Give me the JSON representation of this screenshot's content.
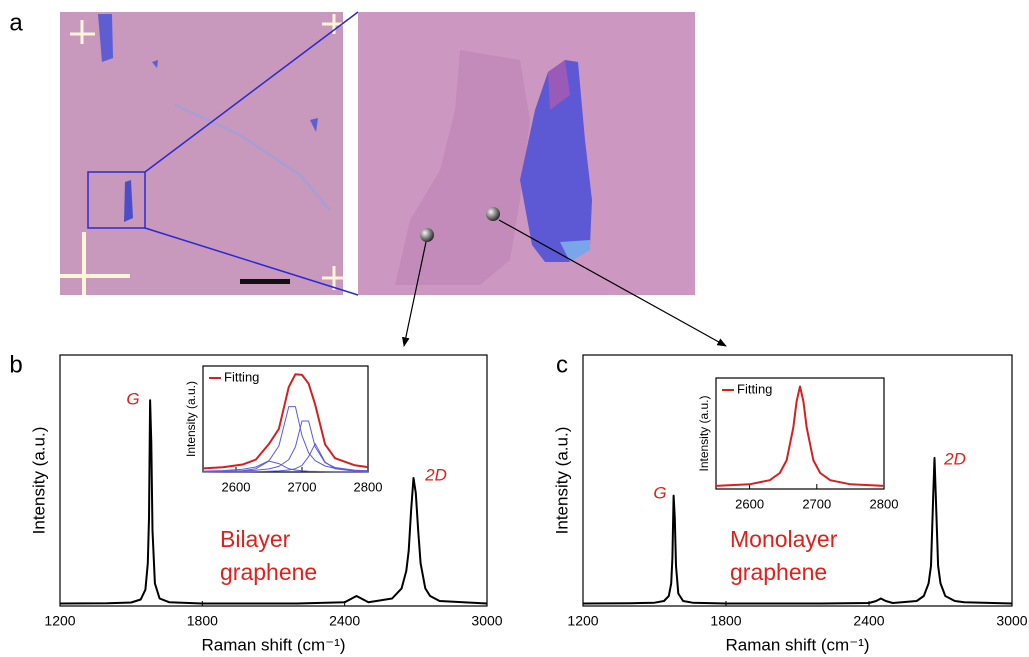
{
  "panel_labels": [
    "a",
    "b",
    "c"
  ],
  "chart_data": [
    {
      "type": "line",
      "xlabel": "Raman shift (cm⁻¹)",
      "ylabel": "Intensity (a.u.)",
      "xlim": [
        1200,
        3000
      ],
      "xticks": [
        1200,
        1800,
        2400,
        3000
      ],
      "ylim": [
        0,
        1
      ],
      "x": [
        1200,
        1400,
        1500,
        1540,
        1560,
        1570,
        1575,
        1580,
        1585,
        1590,
        1600,
        1620,
        1660,
        1800,
        2000,
        2200,
        2400,
        2430,
        2450,
        2470,
        2500,
        2600,
        2640,
        2660,
        2670,
        2680,
        2690,
        2700,
        2710,
        2720,
        2740,
        2760,
        2800,
        3000
      ],
      "series": [
        {
          "color": "#000000",
          "values": [
            0.01,
            0.011,
            0.014,
            0.026,
            0.065,
            0.17,
            0.35,
            0.82,
            0.65,
            0.3,
            0.09,
            0.03,
            0.015,
            0.01,
            0.01,
            0.01,
            0.015,
            0.03,
            0.04,
            0.03,
            0.015,
            0.03,
            0.07,
            0.14,
            0.22,
            0.38,
            0.51,
            0.45,
            0.3,
            0.17,
            0.07,
            0.04,
            0.02,
            0.01
          ]
        }
      ],
      "annotations": [
        "G",
        "2D",
        "Bilayer",
        "graphene"
      ]
    },
    {
      "type": "line",
      "ylabel": "Intensity (a.u.)",
      "xlim": [
        2550,
        2800
      ],
      "xticks": [
        2600,
        2700,
        2800
      ],
      "ylim": [
        0,
        1.05
      ],
      "x": [
        2550,
        2580,
        2610,
        2630,
        2650,
        2665,
        2680,
        2690,
        2700,
        2710,
        2720,
        2735,
        2750,
        2780,
        2800
      ],
      "series": [
        {
          "color": "#5a5ae6",
          "values": [
            0.002,
            0.005,
            0.012,
            0.032,
            0.108,
            0.083,
            0.032,
            0.019,
            0.012,
            0.008,
            0.006,
            0.004,
            0.003,
            0.002,
            0.001
          ]
        },
        {
          "color": "#5a5ae6",
          "values": [
            0.009,
            0.014,
            0.028,
            0.05,
            0.112,
            0.259,
            0.648,
            0.648,
            0.36,
            0.19,
            0.112,
            0.059,
            0.036,
            0.018,
            0.012
          ]
        },
        {
          "color": "#5a5ae6",
          "values": [
            0.004,
            0.006,
            0.011,
            0.017,
            0.031,
            0.055,
            0.123,
            0.249,
            0.505,
            0.505,
            0.249,
            0.092,
            0.045,
            0.017,
            0.011
          ]
        },
        {
          "color": "#5a5ae6",
          "values": [
            0.001,
            0.002,
            0.003,
            0.004,
            0.007,
            0.011,
            0.02,
            0.033,
            0.065,
            0.153,
            0.28,
            0.098,
            0.033,
            0.009,
            0.005
          ]
        },
        {
          "name": "Fitting",
          "color": "#d42020",
          "values": [
            0.036,
            0.047,
            0.074,
            0.123,
            0.278,
            0.428,
            0.843,
            0.969,
            0.962,
            0.876,
            0.667,
            0.273,
            0.137,
            0.066,
            0.049
          ]
        }
      ]
    },
    {
      "type": "line",
      "xlabel": "Raman shift (cm⁻¹)",
      "ylabel": "Intensity (a.u.)",
      "xlim": [
        1200,
        3000
      ],
      "xticks": [
        1200,
        1800,
        2400,
        3000
      ],
      "ylim": [
        0,
        1
      ],
      "x": [
        1200,
        1400,
        1500,
        1540,
        1560,
        1570,
        1575,
        1580,
        1585,
        1590,
        1600,
        1620,
        1660,
        1800,
        2000,
        2200,
        2400,
        2430,
        2450,
        2470,
        2500,
        2600,
        2630,
        2650,
        2660,
        2670,
        2675,
        2680,
        2690,
        2700,
        2720,
        2760,
        2800,
        3000
      ],
      "series": [
        {
          "color": "#000000",
          "values": [
            0.01,
            0.011,
            0.013,
            0.02,
            0.04,
            0.09,
            0.19,
            0.44,
            0.35,
            0.16,
            0.05,
            0.02,
            0.013,
            0.01,
            0.01,
            0.01,
            0.012,
            0.02,
            0.03,
            0.02,
            0.012,
            0.02,
            0.04,
            0.09,
            0.16,
            0.45,
            0.59,
            0.45,
            0.16,
            0.09,
            0.04,
            0.02,
            0.015,
            0.01
          ]
        }
      ],
      "annotations": [
        "G",
        "2D",
        "Monolayer",
        "graphene"
      ]
    },
    {
      "type": "line",
      "ylabel": "Intensity (a.u.)",
      "xlim": [
        2550,
        2800
      ],
      "xticks": [
        2600,
        2700,
        2800
      ],
      "ylim": [
        0,
        1.05
      ],
      "x": [
        2550,
        2600,
        2630,
        2645,
        2655,
        2665,
        2670,
        2675,
        2680,
        2685,
        2695,
        2705,
        2720,
        2750,
        2800
      ],
      "series": [
        {
          "name": "Fitting",
          "color": "#d42020",
          "values": [
            0.029,
            0.044,
            0.083,
            0.151,
            0.271,
            0.581,
            0.829,
            0.97,
            0.829,
            0.581,
            0.271,
            0.151,
            0.083,
            0.044,
            0.029
          ]
        }
      ]
    }
  ]
}
